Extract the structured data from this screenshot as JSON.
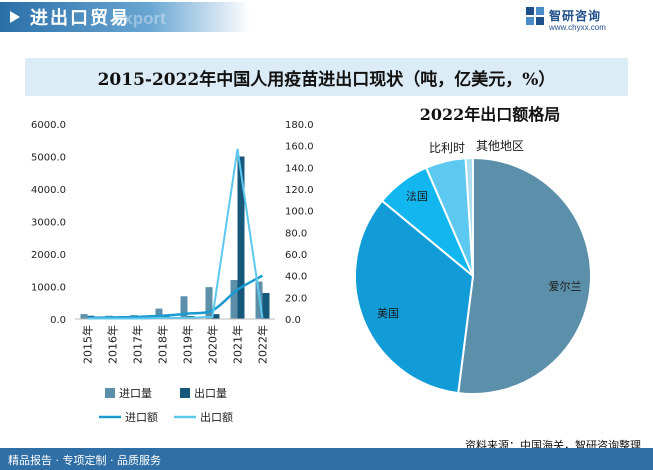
{
  "header": {
    "title": "进出口贸易",
    "watermark_text": "Export",
    "brand_name": "智研咨询",
    "brand_url": "www.chyxx.com"
  },
  "footer": {
    "left": "精品报告 · 专项定制 · 品质服务",
    "source": "资料来源：中国海关，智研咨询整理"
  },
  "colors": {
    "import_volume": "#5b8faa",
    "export_volume": "#15587a",
    "import_value": "#1b9ad2",
    "export_value": "#5cc8ee",
    "pie_ireland": "#5b8faa",
    "pie_usa": "#119cd8",
    "pie_france": "#12b7ef",
    "pie_belgium": "#5dc9f0",
    "pie_other": "#a9ddef"
  },
  "chart_data": [
    {
      "type": "bar",
      "title": "2015-2022年中国人用疫苗进出口现状（吨，亿美元，%）",
      "categories": [
        "2015年",
        "2016年",
        "2017年",
        "2018年",
        "2019年",
        "2020年",
        "2021年",
        "2022年"
      ],
      "series": [
        {
          "name": "进口量",
          "type": "bar",
          "axis": "left",
          "values": [
            150,
            100,
            120,
            320,
            700,
            980,
            1200,
            1150
          ]
        },
        {
          "name": "出口量",
          "type": "bar",
          "axis": "left",
          "values": [
            100,
            50,
            70,
            110,
            90,
            150,
            5000,
            800
          ]
        },
        {
          "name": "进口额",
          "type": "line",
          "axis": "right",
          "values": [
            1,
            1.5,
            2,
            3,
            5,
            8,
            27,
            40
          ]
        },
        {
          "name": "出口额",
          "type": "line",
          "axis": "right",
          "values": [
            0.5,
            0.5,
            0.5,
            1,
            1,
            2,
            157,
            1
          ]
        }
      ],
      "ylim_left": [
        0,
        6000
      ],
      "yticks_left": [
        "0.0",
        "1000.0",
        "2000.0",
        "3000.0",
        "4000.0",
        "5000.0",
        "6000.0"
      ],
      "ylim_right": [
        0,
        180
      ],
      "yticks_right": [
        "0.0",
        "20.0",
        "40.0",
        "60.0",
        "80.0",
        "100.0",
        "120.0",
        "140.0",
        "160.0",
        "180.0"
      ],
      "legend_position": "bottom",
      "grid": false
    },
    {
      "type": "pie",
      "title": "2022年出口额格局",
      "labels": [
        "爱尔兰",
        "美国",
        "法国",
        "比利时",
        "其他地区"
      ],
      "values": [
        52,
        34,
        7.5,
        5.5,
        1
      ]
    }
  ]
}
